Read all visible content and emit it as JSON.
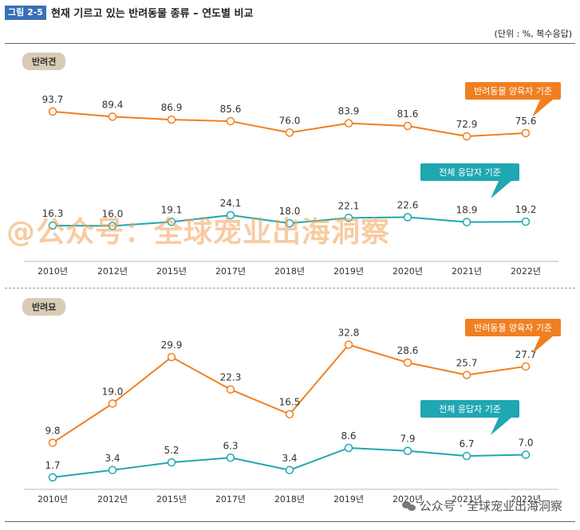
{
  "figure": {
    "label": "그림 2-5",
    "title": "현재 기르고 있는 반려동물 종류 – 연도별 비교",
    "unit_note": "(단위 : %, 복수응답)"
  },
  "watermark": "@公众号：全球宠业出海洞察",
  "footer_watermark": "公众号 · 全球宠业出海洞察",
  "colors": {
    "owner": "#f07f22",
    "all": "#1fa7b2",
    "badge": "#3a6fb7",
    "tag": "#d9cbb4"
  },
  "chart_data": [
    {
      "type": "line",
      "title": "반려견",
      "categories": [
        "2010년",
        "2012년",
        "2015년",
        "2017년",
        "2018년",
        "2019년",
        "2020년",
        "2021년",
        "2022년"
      ],
      "series": [
        {
          "name": "반려동물 양육자 기준",
          "values": [
            93.7,
            89.4,
            86.9,
            85.6,
            76.0,
            83.9,
            81.6,
            72.9,
            75.6
          ],
          "labels": [
            "93.7",
            "89.4",
            "86.9",
            "85.6",
            "76.0",
            "83.9",
            "81.6",
            "72.9",
            "75.6"
          ]
        },
        {
          "name": "전체 응답자 기준",
          "values": [
            16.3,
            16.0,
            19.1,
            24.1,
            18.0,
            22.1,
            22.6,
            18.9,
            19.2
          ],
          "labels": [
            "16.3",
            "16.0",
            "19.1",
            "24.1",
            "18.0",
            "22.1",
            "22.6",
            "18.9",
            "19.2"
          ]
        }
      ],
      "ylim": [
        0,
        100
      ],
      "legend_position": "right"
    },
    {
      "type": "line",
      "title": "반려묘",
      "categories": [
        "2010년",
        "2012년",
        "2015년",
        "2017년",
        "2018년",
        "2019년",
        "2020년",
        "2021년",
        "2022년"
      ],
      "series": [
        {
          "name": "반려동물 양육자 기준",
          "values": [
            9.8,
            19.0,
            29.9,
            22.3,
            16.5,
            32.8,
            28.6,
            25.7,
            27.7
          ],
          "labels": [
            "9.8",
            "19.0",
            "29.9",
            "22.3",
            "16.5",
            "32.8",
            "28.6",
            "25.7",
            "27.7"
          ]
        },
        {
          "name": "전체 응답자 기준",
          "values": [
            1.7,
            3.4,
            5.2,
            6.3,
            3.4,
            8.6,
            7.9,
            6.7,
            7.0
          ],
          "labels": [
            "1.7",
            "3.4",
            "5.2",
            "6.3",
            "3.4",
            "8.6",
            "7.9",
            "6.7",
            "7.0"
          ]
        }
      ],
      "ylim": [
        0,
        35
      ],
      "legend_position": "right"
    }
  ]
}
